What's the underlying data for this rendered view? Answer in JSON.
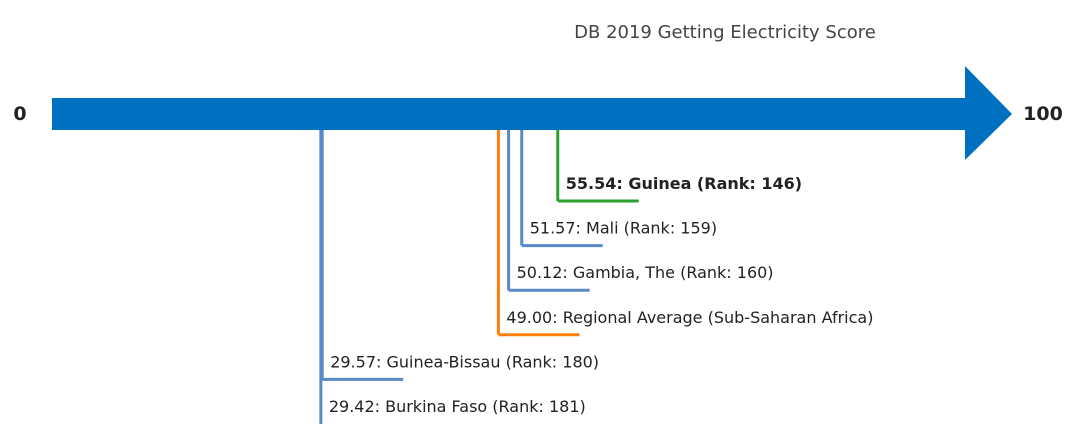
{
  "chart_data": {
    "type": "scale",
    "title": "DB 2019 Getting Electricity Score",
    "xlim": [
      0,
      100
    ],
    "xticks": [
      0,
      100
    ],
    "axis_color": "#0070c0",
    "points": [
      {
        "label": "55.54: Guinea (Rank: 146)",
        "value": 55.54,
        "color": "#2ca02c",
        "bold": true
      },
      {
        "label": "51.57: Mali (Rank: 159)",
        "value": 51.57,
        "color": "#5a8ac6",
        "bold": false
      },
      {
        "label": "50.12: Gambia, The (Rank: 160)",
        "value": 50.12,
        "color": "#5a8ac6",
        "bold": false
      },
      {
        "label": "49.00: Regional Average (Sub-Saharan Africa)",
        "value": 49.0,
        "color": "#ff7f0e",
        "bold": false
      },
      {
        "label": "29.57: Guinea-Bissau (Rank: 180)",
        "value": 29.57,
        "color": "#5a8ac6",
        "bold": false
      },
      {
        "label": "29.42: Burkina Faso (Rank: 181)",
        "value": 29.42,
        "color": "#5a8ac6",
        "bold": false
      }
    ]
  }
}
